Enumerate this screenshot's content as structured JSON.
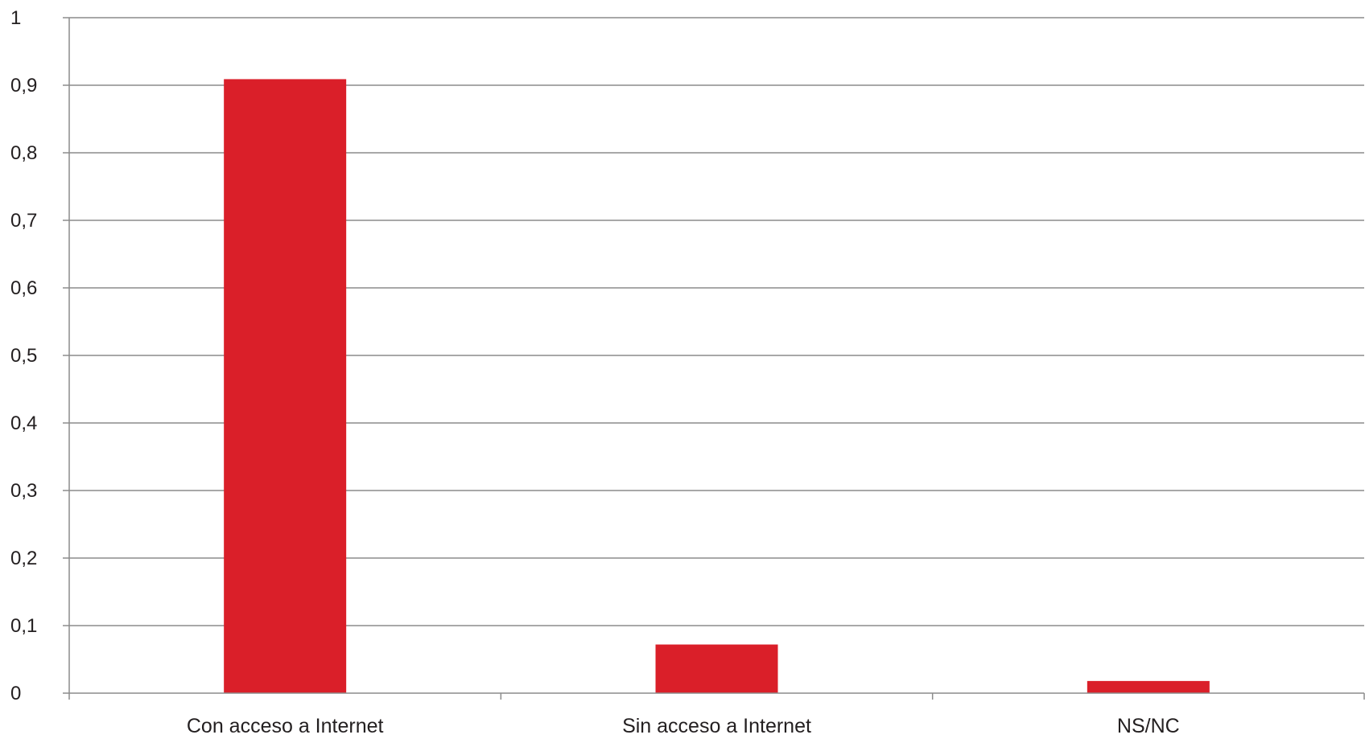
{
  "chart_data": {
    "type": "bar",
    "title": "",
    "xlabel": "",
    "ylabel": "",
    "categories": [
      "Con acceso a Internet",
      "Sin acceso a Internet",
      "NS/NC"
    ],
    "values": [
      0.909,
      0.072,
      0.018
    ],
    "ylim": [
      0,
      1
    ],
    "yticks": [
      0,
      0.1,
      0.2,
      0.3,
      0.4,
      0.5,
      0.6,
      0.7,
      0.8,
      0.9,
      1
    ],
    "ytick_labels": [
      "0",
      "0,1",
      "0,2",
      "0,3",
      "0,4",
      "0,5",
      "0,6",
      "0,7",
      "0,8",
      "0,9",
      "1"
    ],
    "grid": true,
    "legend": "none",
    "colors": {
      "bar": "#da1f29",
      "grid": "#8c8c8c",
      "axis": "#8c8c8c",
      "text": "#231f20"
    }
  }
}
